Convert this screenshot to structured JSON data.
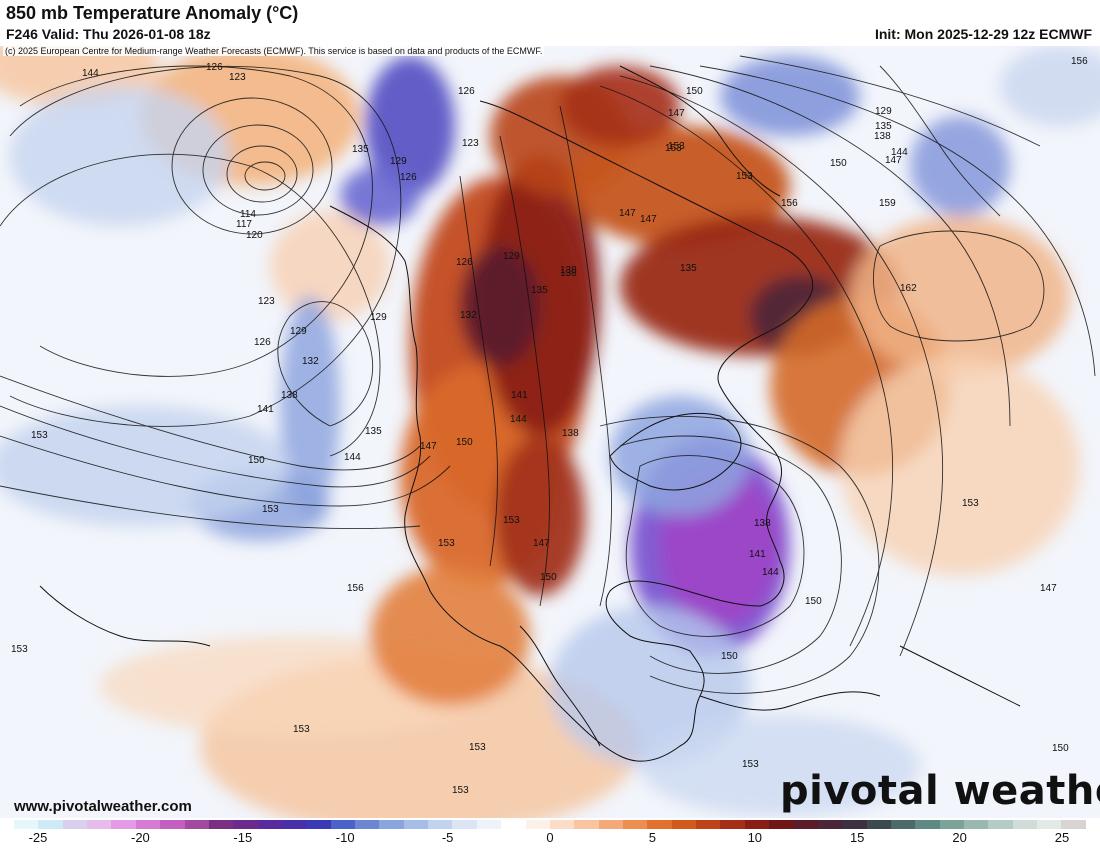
{
  "header": {
    "title": "850 mb Temperature Anomaly (°C)",
    "valid": "F246 Valid: Thu 2026-01-08 18z",
    "init": "Init: Mon 2025-12-29 12z ECMWF",
    "copyright": "(c) 2025 European Centre for Medium-range Weather Forecasts (ECMWF). This service is based on data and products of the ECMWF."
  },
  "footer": {
    "website": "www.pivotalweather.com",
    "logo": "pivotal weather"
  },
  "colorbar": {
    "ticks": [
      "-25",
      "-20",
      "-15",
      "-10",
      "-5",
      "0",
      "5",
      "10",
      "15",
      "20",
      "25"
    ],
    "colors": [
      "#e6f7fb",
      "#cdeaf6",
      "#d9d0f0",
      "#e8bbed",
      "#e39be8",
      "#d77ad6",
      "#c35fc0",
      "#a24aa0",
      "#7a2f84",
      "#6b2a8c",
      "#5a2b9c",
      "#4930a8",
      "#3a3ab6",
      "#4a62c9",
      "#6d86d4",
      "#8aa4de",
      "#a6bde6",
      "#c2d3ee",
      "#dbe5f4",
      "#eef3fa",
      "#ffffff",
      "#fdf0e6",
      "#fbdcc6",
      "#f8c5a0",
      "#f4aa78",
      "#ee8d52",
      "#e2702f",
      "#d15a1c",
      "#bd4418",
      "#a52f16",
      "#8a1e14",
      "#6f1616",
      "#5a1b2a",
      "#4c2638",
      "#3d3040",
      "#3b4a4e",
      "#4a6b6a",
      "#5f8a84",
      "#7aa39a",
      "#98b8b0",
      "#b4ccc5",
      "#cfdcd7",
      "#e3e9e6",
      "#d9d4d4"
    ]
  },
  "map_labels": {
    "contours": [
      "144",
      "126",
      "123",
      "126",
      "135",
      "129",
      "126",
      "123",
      "114",
      "117",
      "120",
      "123",
      "126",
      "129",
      "132",
      "138",
      "141",
      "135",
      "129",
      "144",
      "150",
      "153",
      "153",
      "153",
      "147",
      "150",
      "132",
      "126",
      "129",
      "135",
      "138",
      "141",
      "144",
      "138",
      "147",
      "150",
      "153",
      "147",
      "153",
      "150",
      "147",
      "150",
      "144",
      "141",
      "138",
      "150",
      "153",
      "156",
      "153",
      "153",
      "153",
      "153",
      "153",
      "156",
      "162",
      "159",
      "150",
      "147",
      "144",
      "138",
      "135",
      "129",
      "156",
      "153",
      "150",
      "147",
      "153",
      "135",
      "138",
      "147"
    ]
  }
}
